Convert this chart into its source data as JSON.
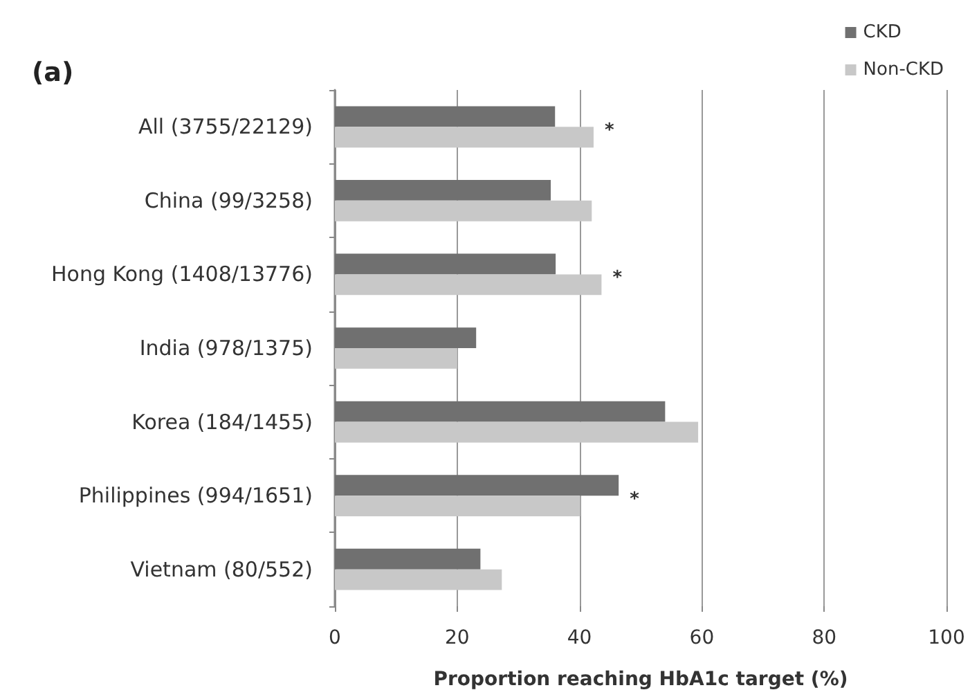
{
  "chart_data": {
    "type": "bar",
    "orientation": "horizontal",
    "title": "(a)",
    "xlabel": "Proportion reaching HbA1c target (%)",
    "categories": [
      "All (3755/22129)",
      "China (99/3258)",
      "Hong Kong (1408/13776)",
      "India (978/1375)",
      "Korea (184/1455)",
      "Philippines (994/1651)",
      "Vietnam (80/552)"
    ],
    "series": [
      {
        "name": "CKD",
        "color": "#707070",
        "values": [
          36,
          35.3,
          36.1,
          23.1,
          54,
          46.4,
          23.8
        ]
      },
      {
        "name": "Non-CKD",
        "color": "#c8c8c8",
        "values": [
          42.3,
          42,
          43.6,
          20,
          59.4,
          40.1,
          27.3
        ]
      }
    ],
    "xlim": [
      0,
      100
    ],
    "xticks": [
      0,
      20,
      40,
      60,
      80,
      100
    ],
    "grid": "x",
    "legend": "top right",
    "annotations": [
      {
        "text": "*",
        "x": 42.3,
        "y": "All (3755/22129)"
      },
      {
        "text": "*",
        "x": 43.6,
        "y": "Hong Kong (1408/13776)"
      },
      {
        "text": "*",
        "x": 46.4,
        "y": "Philippines (994/1651)"
      }
    ]
  }
}
